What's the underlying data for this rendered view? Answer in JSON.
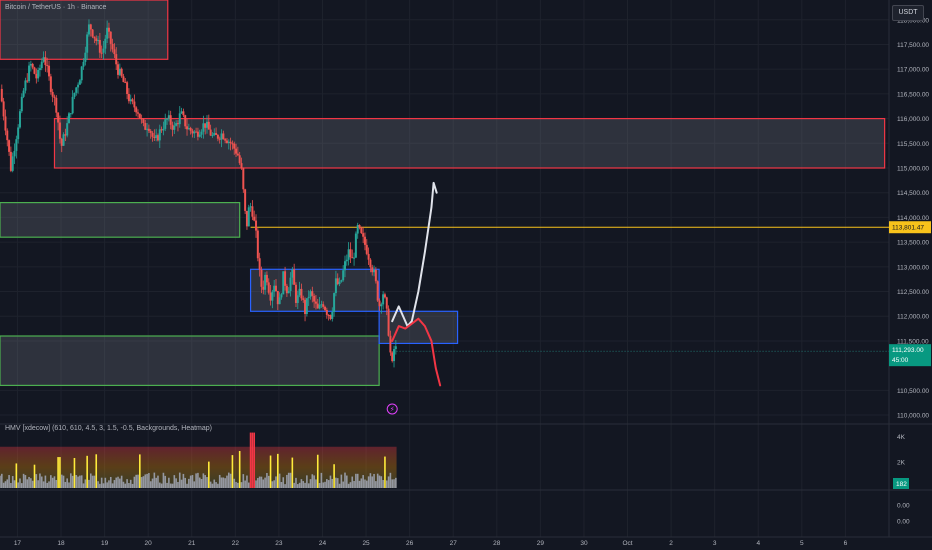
{
  "header": {
    "title": "Bitcoin / TetherUS · 1h · Binance",
    "currency": "USDT"
  },
  "indicator": {
    "title": "HMV [xdecow] (610, 610, 4.5, 3, 1.5, -0.5, Backgrounds, Heatmap)"
  },
  "colors": {
    "background": "#131722",
    "up": "#26a69a",
    "down": "#ef5350",
    "zone_red": "#f23645",
    "zone_green": "#4caf50",
    "zone_blue": "#2962ff",
    "level_line": "#f7c21b",
    "drawing_white": "#e0e3eb",
    "drawing_red": "#f23645"
  },
  "chart_data": [
    {
      "type": "candlestick",
      "symbol": "Bitcoin / TetherUS",
      "interval": "1h",
      "exchange": "Binance",
      "y_axis_ticks": [
        "118,000.00",
        "117,500.00",
        "117,000.00",
        "116,500.00",
        "116,000.00",
        "115,500.00",
        "115,000.00",
        "114,500.00",
        "114,000.00",
        "113,500.00",
        "113,000.00",
        "112,500.00",
        "112,000.00",
        "111,500.00",
        "110,500.00",
        "110,000.00"
      ],
      "ylim": [
        109900,
        118400
      ],
      "x_axis_ticks": [
        {
          "label": "17",
          "day": 17
        },
        {
          "label": "18",
          "day": 18
        },
        {
          "label": "19",
          "day": 19
        },
        {
          "label": "20",
          "day": 20
        },
        {
          "label": "21",
          "day": 21
        },
        {
          "label": "22",
          "day": 22
        },
        {
          "label": "23",
          "day": 23
        },
        {
          "label": "24",
          "day": 24
        },
        {
          "label": "25",
          "day": 25
        },
        {
          "label": "26",
          "day": 26
        },
        {
          "label": "27",
          "day": 27
        },
        {
          "label": "28",
          "day": 28
        },
        {
          "label": "29",
          "day": 29
        },
        {
          "label": "30",
          "day": 30
        },
        {
          "label": "Oct",
          "day": 31
        },
        {
          "label": "2",
          "day": 32
        },
        {
          "label": "3",
          "day": 33
        },
        {
          "label": "4",
          "day": 34
        },
        {
          "label": "5",
          "day": 35
        },
        {
          "label": "6",
          "day": 36
        }
      ],
      "xlim": [
        16.6,
        37.0
      ],
      "price_path": [
        [
          16.6,
          116600
        ],
        [
          16.75,
          115700
        ],
        [
          16.85,
          115000
        ],
        [
          17.0,
          115800
        ],
        [
          17.15,
          116600
        ],
        [
          17.3,
          117100
        ],
        [
          17.45,
          116800
        ],
        [
          17.6,
          117300
        ],
        [
          17.75,
          116700
        ],
        [
          17.9,
          116200
        ],
        [
          18.0,
          115400
        ],
        [
          18.15,
          115900
        ],
        [
          18.3,
          116500
        ],
        [
          18.45,
          116900
        ],
        [
          18.55,
          117400
        ],
        [
          18.65,
          117900
        ],
        [
          18.8,
          117600
        ],
        [
          18.95,
          117300
        ],
        [
          19.05,
          117800
        ],
        [
          19.15,
          117500
        ],
        [
          19.3,
          117000
        ],
        [
          19.45,
          116700
        ],
        [
          19.6,
          116300
        ],
        [
          19.75,
          116200
        ],
        [
          19.9,
          115800
        ],
        [
          20.0,
          115900
        ],
        [
          20.15,
          115500
        ],
        [
          20.3,
          115800
        ],
        [
          20.45,
          116000
        ],
        [
          20.6,
          115800
        ],
        [
          20.75,
          116100
        ],
        [
          20.9,
          115800
        ],
        [
          21.1,
          115700
        ],
        [
          21.3,
          115900
        ],
        [
          21.5,
          115600
        ],
        [
          21.7,
          115700
        ],
        [
          21.9,
          115500
        ],
        [
          22.05,
          115300
        ],
        [
          22.15,
          114900
        ],
        [
          22.22,
          114100
        ],
        [
          22.28,
          113800
        ],
        [
          22.32,
          114300
        ],
        [
          22.4,
          114100
        ],
        [
          22.48,
          113600
        ],
        [
          22.55,
          112900
        ],
        [
          22.62,
          112500
        ],
        [
          22.7,
          112900
        ],
        [
          22.8,
          112400
        ],
        [
          22.9,
          112700
        ],
        [
          23.0,
          112200
        ],
        [
          23.1,
          112800
        ],
        [
          23.2,
          112500
        ],
        [
          23.3,
          112900
        ],
        [
          23.4,
          112300
        ],
        [
          23.5,
          112500
        ],
        [
          23.6,
          112100
        ],
        [
          23.7,
          112500
        ],
        [
          23.8,
          112300
        ],
        [
          23.9,
          112100
        ],
        [
          24.0,
          112300
        ],
        [
          24.1,
          112100
        ],
        [
          24.2,
          112000
        ],
        [
          24.3,
          112700
        ],
        [
          24.4,
          112600
        ],
        [
          24.5,
          113000
        ],
        [
          24.6,
          113300
        ],
        [
          24.7,
          113100
        ],
        [
          24.8,
          113800
        ],
        [
          24.9,
          113600
        ],
        [
          25.0,
          113400
        ],
        [
          25.1,
          113100
        ],
        [
          25.2,
          112800
        ],
        [
          25.3,
          112200
        ],
        [
          25.4,
          112500
        ],
        [
          25.5,
          111900
        ],
        [
          25.55,
          111300
        ],
        [
          25.6,
          111000
        ],
        [
          25.65,
          111400
        ],
        [
          25.7,
          111300
        ]
      ],
      "zones": [
        {
          "color": "red",
          "x": [
            16.6,
            20.45
          ],
          "y": [
            117200,
            118400
          ]
        },
        {
          "color": "red",
          "x": [
            17.85,
            36.9
          ],
          "y": [
            115000,
            116000
          ]
        },
        {
          "color": "green",
          "x": [
            16.6,
            22.1
          ],
          "y": [
            113600,
            114300
          ]
        },
        {
          "color": "blue",
          "x": [
            22.35,
            25.3
          ],
          "y": [
            112100,
            112950
          ]
        },
        {
          "color": "green",
          "x": [
            16.6,
            25.3
          ],
          "y": [
            110600,
            111600
          ]
        },
        {
          "color": "blue",
          "x": [
            25.3,
            27.1
          ],
          "y": [
            111450,
            112100
          ]
        }
      ],
      "level_line": {
        "price": 113801.47,
        "label": "113,801.47",
        "from_day": 22.35
      },
      "last_price": {
        "label": "111,293.00",
        "countdown": "45:00",
        "price": 111293
      },
      "annotation_white_path": [
        [
          25.6,
          111900
        ],
        [
          25.75,
          112200
        ],
        [
          25.85,
          112000
        ],
        [
          25.95,
          111800
        ],
        [
          26.05,
          111900
        ],
        [
          26.2,
          112500
        ],
        [
          26.35,
          113300
        ],
        [
          26.5,
          114200
        ],
        [
          26.55,
          114700
        ],
        [
          26.62,
          114500
        ]
      ],
      "annotation_red_path": [
        [
          25.6,
          111500
        ],
        [
          25.75,
          111800
        ],
        [
          25.9,
          111750
        ],
        [
          26.05,
          111850
        ],
        [
          26.2,
          111950
        ],
        [
          26.35,
          111800
        ],
        [
          26.5,
          111500
        ],
        [
          26.6,
          110950
        ],
        [
          26.7,
          110600
        ]
      ]
    },
    {
      "type": "bar",
      "name": "HMV [xdecow]",
      "y_axis_ticks": [
        "4K",
        "2K"
      ],
      "ylim": [
        0,
        4500
      ],
      "last_value_label": "182"
    },
    {
      "type": "line",
      "y_axis_ticks": [
        "0.00",
        "0.00"
      ]
    }
  ]
}
